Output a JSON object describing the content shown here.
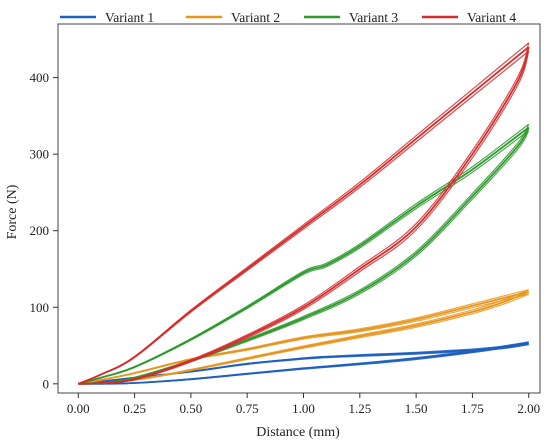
{
  "chart_data": {
    "type": "line",
    "title": "",
    "xlabel": "Distance (mm)",
    "ylabel": "Force (N)",
    "xlim": [
      -0.09,
      2.05
    ],
    "ylim": [
      -12,
      470
    ],
    "xticks": [
      0.0,
      0.25,
      0.5,
      0.75,
      1.0,
      1.25,
      1.5,
      1.75,
      2.0
    ],
    "xtick_labels": [
      "0.00",
      "0.25",
      "0.50",
      "0.75",
      "1.00",
      "1.25",
      "1.50",
      "1.75",
      "2.00"
    ],
    "yticks": [
      0,
      100,
      200,
      300,
      400
    ],
    "ytick_labels": [
      "0",
      "100",
      "200",
      "300",
      "400"
    ],
    "grid": false,
    "legend_position": "top",
    "series": [
      {
        "name": "Variant 1",
        "color": "#1f5fbf",
        "loading": {
          "x": [
            0,
            0.1,
            0.25,
            0.5,
            0.75,
            1.0,
            1.1,
            1.25,
            1.5,
            1.75,
            1.9,
            2.0
          ],
          "y": [
            0,
            3,
            8,
            16,
            26,
            33,
            35,
            37,
            40,
            44,
            48,
            53
          ]
        },
        "unloading": {
          "x": [
            2.0,
            1.75,
            1.5,
            1.25,
            1.0,
            0.75,
            0.5,
            0.25,
            0.1,
            0
          ],
          "y": [
            53,
            42,
            33,
            26,
            20,
            13,
            6,
            1,
            0,
            0
          ]
        }
      },
      {
        "name": "Variant 2",
        "color": "#e8951d",
        "loading": {
          "x": [
            0,
            0.1,
            0.25,
            0.5,
            0.75,
            1.0,
            1.25,
            1.5,
            1.75,
            2.0
          ],
          "y": [
            0,
            5,
            14,
            32,
            45,
            60,
            70,
            84,
            102,
            120
          ]
        },
        "unloading": {
          "x": [
            2.0,
            1.9,
            1.75,
            1.5,
            1.25,
            1.0,
            0.75,
            0.5,
            0.25,
            0.1,
            0
          ],
          "y": [
            120,
            108,
            94,
            76,
            62,
            48,
            33,
            18,
            5,
            1,
            0
          ]
        }
      },
      {
        "name": "Variant 3",
        "color": "#2e9a2e",
        "loading": {
          "x": [
            0,
            0.1,
            0.25,
            0.5,
            0.75,
            1.0,
            1.1,
            1.25,
            1.5,
            1.75,
            2.0
          ],
          "y": [
            0,
            8,
            22,
            58,
            100,
            145,
            155,
            180,
            232,
            280,
            335
          ]
        },
        "unloading": {
          "x": [
            2.0,
            1.95,
            1.75,
            1.5,
            1.25,
            1.0,
            0.75,
            0.5,
            0.25,
            0.1,
            0
          ],
          "y": [
            335,
            310,
            245,
            170,
            120,
            86,
            57,
            30,
            8,
            1,
            0
          ]
        }
      },
      {
        "name": "Variant 4",
        "color": "#d62c2c",
        "loading": {
          "x": [
            0,
            0.1,
            0.25,
            0.5,
            0.75,
            1.0,
            1.25,
            1.5,
            1.75,
            2.0
          ],
          "y": [
            0,
            12,
            35,
            95,
            150,
            205,
            260,
            320,
            380,
            440
          ]
        },
        "unloading": {
          "x": [
            2.0,
            1.95,
            1.75,
            1.5,
            1.25,
            1.0,
            0.75,
            0.5,
            0.25,
            0.1,
            0
          ],
          "y": [
            440,
            395,
            300,
            205,
            150,
            100,
            62,
            30,
            6,
            1,
            0
          ]
        }
      }
    ]
  }
}
